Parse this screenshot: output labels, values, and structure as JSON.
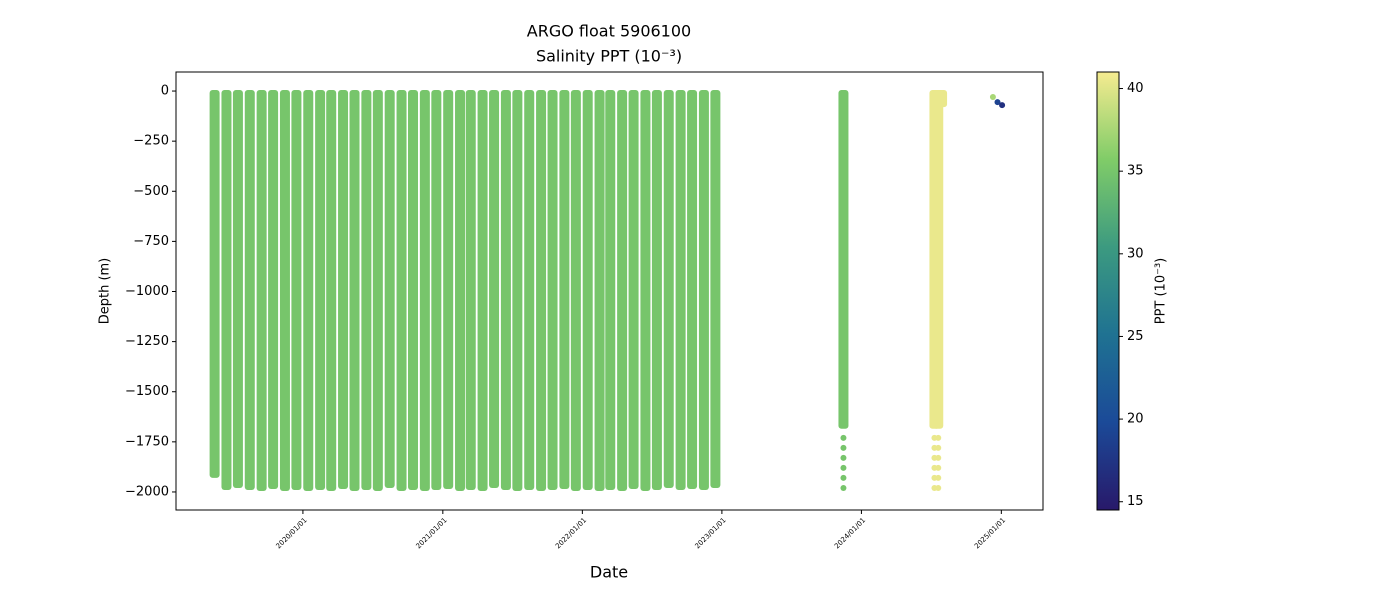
{
  "chart_data": {
    "type": "profile",
    "title": "ARGO float 5906100",
    "subtitle": "Salinity PPT (10⁻³)",
    "xlabel": "Date",
    "ylabel": "Depth (m)",
    "colorbar_label": "PPT (10⁻³)",
    "xlim": [
      "2019-02-03",
      "2025-04-20"
    ],
    "xticks": [
      {
        "value": "2020-01-01",
        "label": "2020/01/01"
      },
      {
        "value": "2021-01-01",
        "label": "2021/01/01"
      },
      {
        "value": "2022-01-01",
        "label": "2022/01/01"
      },
      {
        "value": "2023-01-01",
        "label": "2023/01/01"
      },
      {
        "value": "2024-01-01",
        "label": "2024/01/01"
      },
      {
        "value": "2025-01-01",
        "label": "2025/01/01"
      }
    ],
    "ylim": [
      -2090,
      95
    ],
    "yticks": [
      0,
      {
        "value": -250,
        "label": "−250"
      },
      {
        "value": -500,
        "label": "−500"
      },
      {
        "value": -750,
        "label": "−750"
      },
      {
        "value": -1000,
        "label": "−1000"
      },
      {
        "value": -1250,
        "label": "−1250"
      },
      {
        "value": -1500,
        "label": "−1500"
      },
      {
        "value": -1750,
        "label": "−1750"
      },
      {
        "value": -2000,
        "label": "−2000"
      }
    ],
    "clim": [
      14.5,
      41
    ],
    "cticks": [
      15,
      20,
      25,
      30,
      35,
      40
    ],
    "colormap": [
      "#28196a",
      "#1b4a98",
      "#1f7292",
      "#3c9a80",
      "#80cc68",
      "#f5eb90"
    ],
    "profiles": {
      "x": [
        "2019-05-15",
        "2019-06-15",
        "2019-07-15",
        "2019-08-15",
        "2019-09-15",
        "2019-10-15",
        "2019-11-15",
        "2019-12-15",
        "2020-01-15",
        "2020-02-15",
        "2020-03-15",
        "2020-04-15",
        "2020-05-15",
        "2020-06-15",
        "2020-07-15",
        "2020-08-15",
        "2020-09-15",
        "2020-10-15",
        "2020-11-15",
        "2020-12-15",
        "2021-01-15",
        "2021-02-15",
        "2021-03-15",
        "2021-04-15",
        "2021-05-15",
        "2021-06-15",
        "2021-07-15",
        "2021-08-15",
        "2021-09-15",
        "2021-10-15",
        "2021-11-15",
        "2021-12-15",
        "2022-01-15",
        "2022-02-15",
        "2022-03-15",
        "2022-04-15",
        "2022-05-15",
        "2022-06-15",
        "2022-07-15",
        "2022-08-15",
        "2022-09-15",
        "2022-10-15",
        "2022-11-15",
        "2022-12-15",
        "2023-11-15",
        "2024-07-10",
        "2024-07-20",
        "2024-07-30"
      ],
      "top": [
        0,
        0,
        0,
        0,
        0,
        0,
        0,
        0,
        0,
        0,
        0,
        0,
        0,
        0,
        0,
        0,
        0,
        0,
        0,
        0,
        0,
        0,
        0,
        0,
        0,
        0,
        0,
        0,
        0,
        0,
        0,
        0,
        0,
        0,
        0,
        0,
        0,
        0,
        0,
        0,
        0,
        0,
        0,
        0,
        0,
        0,
        0,
        0
      ],
      "bottom": [
        -1925,
        -1985,
        -1975,
        -1985,
        -1990,
        -1980,
        -1990,
        -1985,
        -1990,
        -1985,
        -1990,
        -1980,
        -1990,
        -1985,
        -1990,
        -1975,
        -1990,
        -1985,
        -1990,
        -1985,
        -1980,
        -1990,
        -1985,
        -1990,
        -1975,
        -1985,
        -1990,
        -1985,
        -1990,
        -1985,
        -1980,
        -1990,
        -1985,
        -1990,
        -1985,
        -1990,
        -1980,
        -1990,
        -1985,
        -1975,
        -1985,
        -1980,
        -1985,
        -1975,
        -1680,
        -1680,
        -1680,
        -75
      ],
      "salinity": [
        35,
        35,
        35,
        35,
        35,
        35,
        35,
        35,
        35,
        35,
        35,
        35,
        35,
        35,
        35,
        35,
        35,
        35,
        35,
        35,
        35,
        35,
        35,
        35,
        35,
        35,
        35,
        35,
        35,
        35,
        35,
        35,
        35,
        35,
        35,
        35,
        35,
        35,
        35,
        35,
        35,
        35,
        35,
        35,
        35,
        40.5,
        40.5,
        40.5
      ]
    },
    "points": {
      "x": [
        "2023-11-15",
        "2023-11-15",
        "2023-11-15",
        "2023-11-15",
        "2023-11-15",
        "2023-11-15",
        "2024-07-10",
        "2024-07-10",
        "2024-07-10",
        "2024-07-10",
        "2024-07-10",
        "2024-07-10",
        "2024-07-20",
        "2024-07-20",
        "2024-07-20",
        "2024-07-20",
        "2024-07-20",
        "2024-07-20",
        "2024-12-10",
        "2024-12-22",
        "2025-01-03"
      ],
      "y": [
        -1730,
        -1780,
        -1830,
        -1880,
        -1930,
        -1980,
        -1730,
        -1780,
        -1830,
        -1880,
        -1930,
        -1980,
        -1730,
        -1780,
        -1830,
        -1880,
        -1930,
        -1980,
        -30,
        -55,
        -70
      ],
      "c": [
        35,
        35,
        35,
        35,
        35,
        35,
        40.5,
        40.5,
        40.5,
        40.5,
        40.5,
        40.5,
        40.5,
        40.5,
        40.5,
        40.5,
        40.5,
        40.5,
        37.5,
        19,
        17
      ]
    }
  }
}
